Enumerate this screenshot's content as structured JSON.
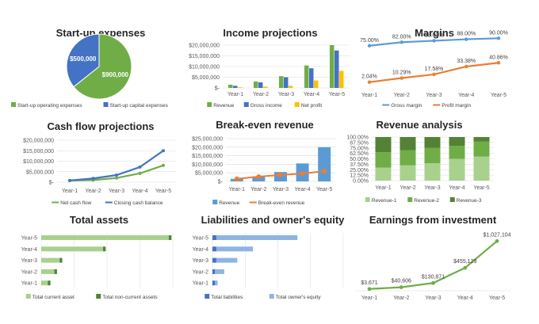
{
  "colors": {
    "green": "#70ad47",
    "blue": "#4472c4",
    "yellow": "#ffc000",
    "lightblue": "#5b9bd5",
    "orange": "#ed7d31",
    "darkgreen": "#548235",
    "green3": "#a9d18e",
    "green4": "#c5e0b4",
    "grid": "#d9d9d9"
  },
  "chart_data": [
    {
      "id": "startup",
      "type": "pie",
      "title": "Start-up expenses",
      "slices": [
        {
          "name": "Start-up operating expenses",
          "value": 900000,
          "label": "$900,000",
          "color": "#70ad47"
        },
        {
          "name": "Start-up capital expenses",
          "value": 500000,
          "label": "$500,000",
          "color": "#4472c4"
        }
      ]
    },
    {
      "id": "income",
      "type": "bar",
      "title": "Income projections",
      "categories": [
        "Year-1",
        "Year-2",
        "Year-3",
        "Year-4",
        "Year-5"
      ],
      "ylim": [
        0,
        20000000
      ],
      "yticks": [
        0,
        5000000,
        10000000,
        15000000,
        20000000
      ],
      "ytick_labels": [
        "$-",
        "$5,000,000",
        "$10,000,000",
        "$15,000,000",
        "$20,000,000"
      ],
      "series": [
        {
          "name": "Revenue",
          "color": "#70ad47",
          "values": [
            1500000,
            3000000,
            5500000,
            10500000,
            20000000
          ]
        },
        {
          "name": "Gross income",
          "color": "#4472c4",
          "values": [
            1000000,
            2600000,
            5000000,
            9200000,
            17500000
          ]
        },
        {
          "name": "Net profit",
          "color": "#ffc000",
          "values": [
            300000,
            600000,
            1000000,
            3500000,
            8000000
          ]
        }
      ]
    },
    {
      "id": "margins",
      "type": "line",
      "title": "Margins",
      "categories": [
        "Year-1",
        "Year-2",
        "Year-3",
        "Year-4",
        "Year-5"
      ],
      "ylim": [
        0,
        100
      ],
      "series": [
        {
          "name": "Gross margin",
          "color": "#5b9bd5",
          "values": [
            75.0,
            82.0,
            85.0,
            88.0,
            90.0
          ],
          "labels": [
            "75.00%",
            "82.00%",
            "85.00%",
            "88.00%",
            "90.00%"
          ]
        },
        {
          "name": "Profit margin",
          "color": "#ed7d31",
          "values": [
            2.04,
            10.29,
            17.58,
            33.38,
            40.86
          ],
          "labels": [
            "2.04%",
            "10.29%",
            "17.58%",
            "33.38%",
            "40.86%"
          ]
        }
      ]
    },
    {
      "id": "cashflow",
      "type": "line",
      "title": "Cash flow projections",
      "categories": [
        "Year-1",
        "Year-2",
        "Year-3",
        "Year-4",
        "Year-5"
      ],
      "ylim": [
        0,
        20000000
      ],
      "yticks": [
        0,
        5000000,
        10000000,
        15000000,
        20000000
      ],
      "ytick_labels": [
        "$-",
        "$5,000,000",
        "$10,000,000",
        "$15,000,000",
        "$20,000,000"
      ],
      "series": [
        {
          "name": "Net cash flow",
          "color": "#70ad47",
          "values": [
            800000,
            1000000,
            2000000,
            4200000,
            8000000
          ]
        },
        {
          "name": "Closing cash balance",
          "color": "#4472c4",
          "values": [
            800000,
            1800000,
            3400000,
            7200000,
            15000000
          ]
        }
      ]
    },
    {
      "id": "breakeven",
      "type": "bar",
      "title": "Break-even revenue",
      "categories": [
        "Year-1",
        "Year-2",
        "Year-3",
        "Year-4",
        "Year-5"
      ],
      "ylim": [
        0,
        25000000
      ],
      "yticks": [
        0,
        5000000,
        10000000,
        15000000,
        20000000,
        25000000
      ],
      "ytick_labels": [
        "$-",
        "$5,000,000",
        "$10,000,000",
        "$15,000,000",
        "$20,000,000",
        "$25,000,000"
      ],
      "series": [
        {
          "name": "Revenue",
          "color": "#5b9bd5",
          "kind": "bar",
          "values": [
            1500000,
            3000000,
            5500000,
            10500000,
            20000000
          ]
        },
        {
          "name": "Break-even revenue",
          "color": "#ed7d31",
          "kind": "line",
          "values": [
            1500000,
            2800000,
            3800000,
            4500000,
            6000000
          ]
        }
      ]
    },
    {
      "id": "revenue_analysis",
      "type": "bar",
      "title": "Revenue analysis",
      "stacked": "percent",
      "categories": [
        "Year-1",
        "Year-2",
        "Year-3",
        "Year-4",
        "Year-5"
      ],
      "ylim": [
        0,
        100
      ],
      "yticks": [
        0,
        25,
        50,
        75,
        100
      ],
      "ytick_labels": [
        "0.00%",
        "25.00%",
        "50.00%",
        "75.00%",
        "100.00%"
      ],
      "extra_ytick_labels": [
        "12.50%",
        "37.50%",
        "62.50%",
        "87.50%"
      ],
      "series": [
        {
          "name": "Revenue-1",
          "color": "#a9d18e",
          "values": [
            30,
            35,
            40,
            50,
            55
          ]
        },
        {
          "name": "Revenue-2",
          "color": "#70ad47",
          "values": [
            35,
            35,
            35,
            30,
            35
          ]
        },
        {
          "name": "Revenue-3",
          "color": "#548235",
          "values": [
            35,
            30,
            25,
            20,
            10
          ]
        }
      ]
    },
    {
      "id": "total_assets",
      "type": "bar",
      "orientation": "horizontal",
      "title": "Total assets",
      "categories": [
        "Year-1",
        "Year-2",
        "Year-3",
        "Year-4",
        "Year-5"
      ],
      "xlim": [
        0,
        100
      ],
      "series": [
        {
          "name": "Total current asset",
          "color": "#a9d18e",
          "values": [
            5,
            10,
            14,
            47,
            97
          ]
        },
        {
          "name": "Total non-current assets",
          "color": "#548235",
          "values": [
            2,
            2,
            2,
            2,
            2
          ]
        }
      ]
    },
    {
      "id": "liabilities",
      "type": "bar",
      "orientation": "horizontal",
      "title": "Liabilities and owner's equity",
      "categories": [
        "Year-1",
        "Year-2",
        "Year-3",
        "Year-4",
        "Year-5"
      ],
      "xlim": [
        0,
        100
      ],
      "series": [
        {
          "name": "Total liabilities",
          "color": "#4472c4",
          "values": [
            2,
            2,
            3,
            3,
            3
          ]
        },
        {
          "name": "Total owner's equity",
          "color": "#8eb4e3",
          "values": [
            2,
            7,
            16,
            28,
            62
          ]
        }
      ]
    },
    {
      "id": "earnings",
      "type": "line",
      "title": "Earnings from investment",
      "categories": [
        "Year-1",
        "Year-2",
        "Year-3",
        "Year-4",
        "Year-5"
      ],
      "ylim": [
        0,
        1100000
      ],
      "series": [
        {
          "name": "Earnings",
          "color": "#70ad47",
          "values": [
            3671,
            40606,
            130871,
            455129,
            1027104
          ],
          "labels": [
            "$3,671",
            "$40,606",
            "$130,871",
            "$455,129",
            "$1,027,104"
          ]
        }
      ]
    }
  ]
}
